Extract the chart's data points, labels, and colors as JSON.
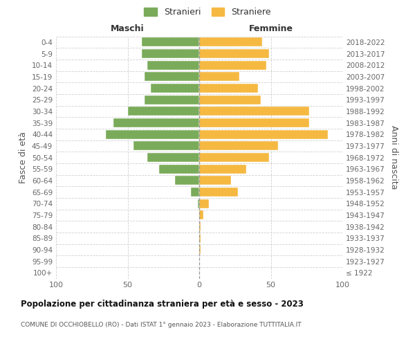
{
  "age_groups": [
    "100+",
    "95-99",
    "90-94",
    "85-89",
    "80-84",
    "75-79",
    "70-74",
    "65-69",
    "60-64",
    "55-59",
    "50-54",
    "45-49",
    "40-44",
    "35-39",
    "30-34",
    "25-29",
    "20-24",
    "15-19",
    "10-14",
    "5-9",
    "0-4"
  ],
  "birth_years": [
    "≤ 1922",
    "1923-1927",
    "1928-1932",
    "1933-1937",
    "1938-1942",
    "1943-1947",
    "1948-1952",
    "1953-1957",
    "1958-1962",
    "1963-1967",
    "1968-1972",
    "1973-1977",
    "1978-1982",
    "1983-1987",
    "1988-1992",
    "1993-1997",
    "1998-2002",
    "2003-2007",
    "2008-2012",
    "2013-2017",
    "2018-2022"
  ],
  "maschi": [
    0,
    0,
    0,
    0,
    0,
    0,
    1,
    6,
    17,
    28,
    36,
    46,
    65,
    60,
    50,
    38,
    34,
    38,
    36,
    40,
    40
  ],
  "femmine": [
    0,
    0,
    1,
    1,
    1,
    3,
    7,
    27,
    22,
    33,
    49,
    55,
    90,
    77,
    77,
    43,
    41,
    28,
    47,
    49,
    44
  ],
  "color_maschi": "#7aab5a",
  "color_femmine": "#f5b942",
  "title": "Popolazione per cittadinanza straniera per età e sesso - 2023",
  "subtitle": "COMUNE DI OCCHIOBELLO (RO) - Dati ISTAT 1° gennaio 2023 - Elaborazione TUTTITALIA.IT",
  "ylabel_left": "Fasce di età",
  "ylabel_right": "Anni di nascita",
  "legend_maschi": "Stranieri",
  "legend_femmine": "Straniere",
  "label_maschi": "Maschi",
  "label_femmine": "Femmine",
  "xlim": 100,
  "background_color": "#ffffff",
  "grid_color": "#d0d0d0"
}
